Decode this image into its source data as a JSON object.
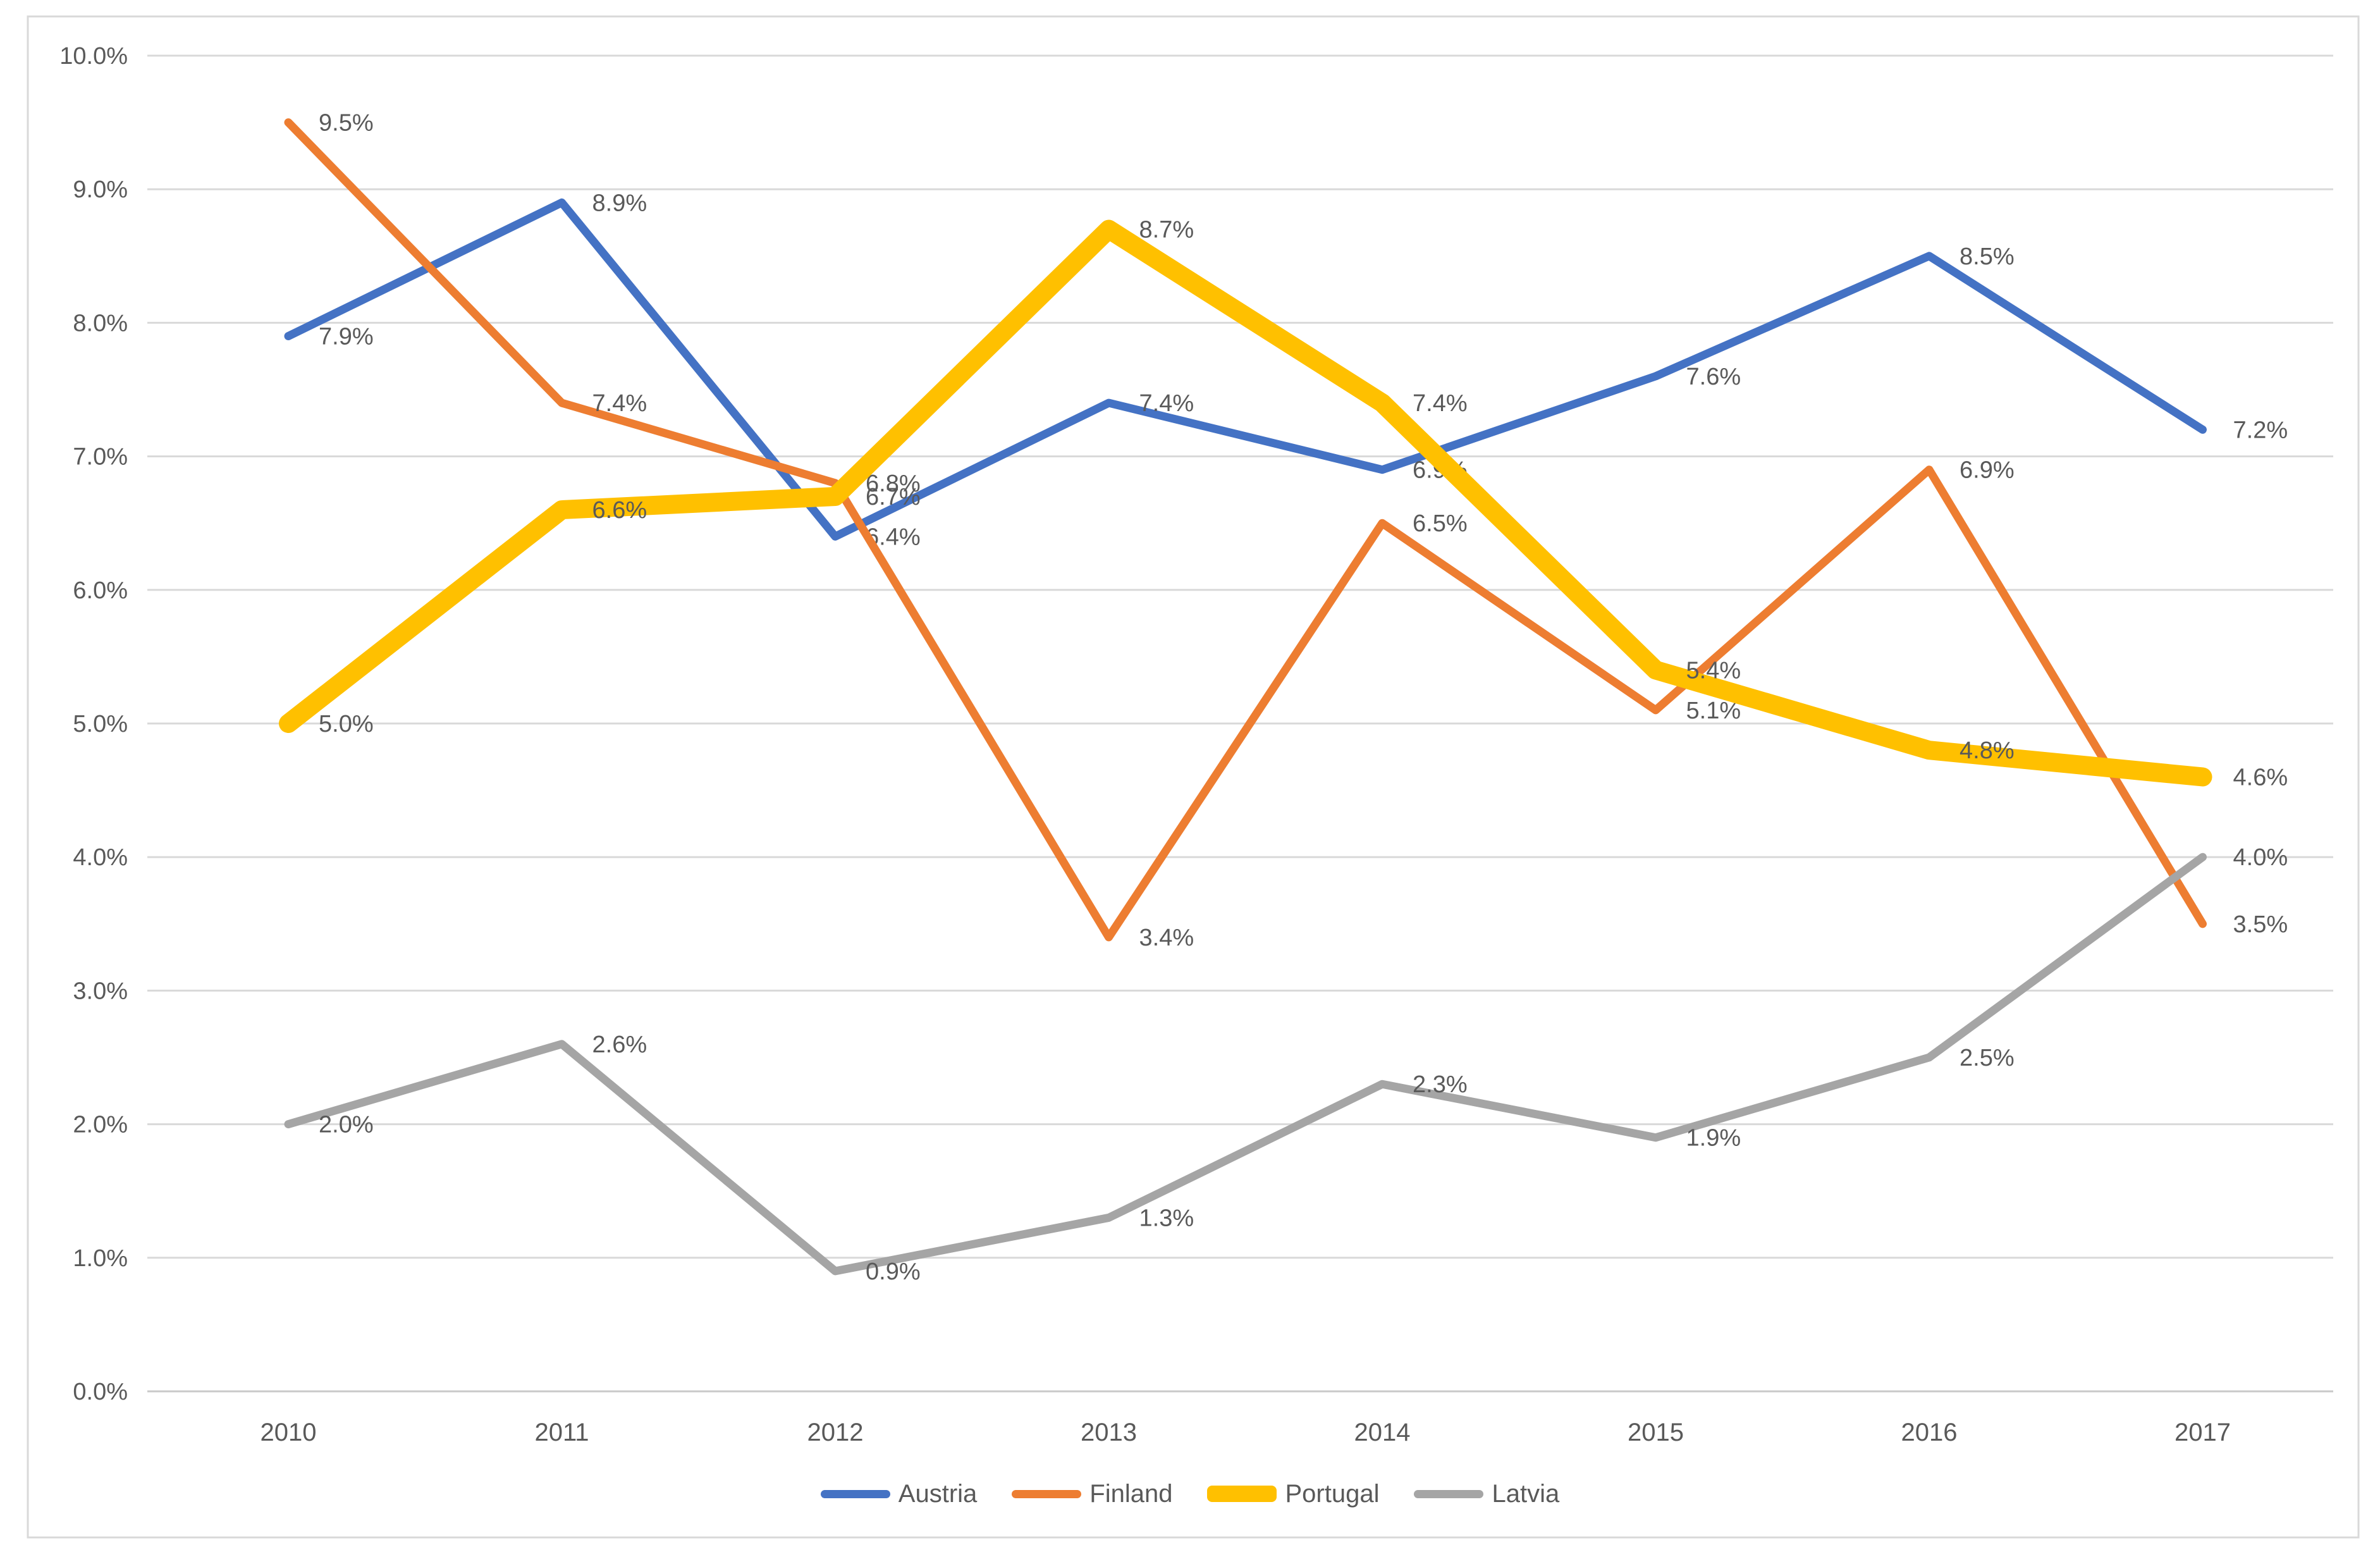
{
  "chart_data": {
    "type": "line",
    "title": "",
    "categories": [
      "2010",
      "2011",
      "2012",
      "2013",
      "2014",
      "2015",
      "2016",
      "2017"
    ],
    "series": [
      {
        "name": "Austria",
        "color": "#4472C4",
        "line_weight": "normal",
        "values": [
          7.9,
          8.9,
          6.4,
          7.4,
          6.9,
          7.6,
          8.5,
          7.2
        ],
        "labels": [
          "7.9%",
          "8.9%",
          "6.4%",
          "7.4%",
          "6.9%",
          "7.6%",
          "8.5%",
          "7.2%"
        ]
      },
      {
        "name": "Finland",
        "color": "#ED7D31",
        "line_weight": "normal",
        "values": [
          9.5,
          7.4,
          6.8,
          3.4,
          6.5,
          5.1,
          6.9,
          3.5
        ],
        "labels": [
          "9.5%",
          "7.4%",
          "6.8%",
          "3.4%",
          "6.5%",
          "5.1%",
          "6.9%",
          "3.5%"
        ]
      },
      {
        "name": "Portugal",
        "color": "#FFC000",
        "line_weight": "thick",
        "values": [
          5.0,
          6.6,
          6.7,
          8.7,
          7.4,
          5.4,
          4.8,
          4.6
        ],
        "labels": [
          "5.0%",
          "6.6%",
          "6.7%",
          "8.7%",
          "7.4%",
          "5.4%",
          "4.8%",
          "4.6%"
        ]
      },
      {
        "name": "Latvia",
        "color": "#A5A5A5",
        "line_weight": "normal",
        "values": [
          2.0,
          2.6,
          0.9,
          1.3,
          2.3,
          1.9,
          2.5,
          4.0
        ],
        "labels": [
          "2.0%",
          "2.6%",
          "0.9%",
          "1.3%",
          "2.3%",
          "1.9%",
          "2.5%",
          "4.0%"
        ]
      }
    ],
    "xlabel": "",
    "ylabel": "",
    "x_axis": {
      "labels": [
        "2010",
        "2011",
        "2012",
        "2013",
        "2014",
        "2015",
        "2016",
        "2017"
      ]
    },
    "y_axis": {
      "min": 0,
      "max": 10,
      "step": 1,
      "tick_labels": [
        "0.0%",
        "1.0%",
        "2.0%",
        "3.0%",
        "4.0%",
        "5.0%",
        "6.0%",
        "7.0%",
        "8.0%",
        "9.0%",
        "10.0%"
      ]
    },
    "ylim": [
      0,
      10
    ],
    "grid": true,
    "data_labels_shown": true,
    "legend": {
      "position": "bottom",
      "entries": [
        {
          "label": "Austria",
          "color": "#4472C4",
          "line_weight": "normal"
        },
        {
          "label": "Finland",
          "color": "#ED7D31",
          "line_weight": "normal"
        },
        {
          "label": "Portugal",
          "color": "#FFC000",
          "line_weight": "thick"
        },
        {
          "label": "Latvia",
          "color": "#A5A5A5",
          "line_weight": "normal"
        }
      ]
    },
    "colors": {
      "background": "#FFFFFF",
      "gridline": "#D9D9D9",
      "axis_line": "#C9C9C9",
      "chart_border": "#D9D9D9",
      "text": "#595959"
    }
  }
}
